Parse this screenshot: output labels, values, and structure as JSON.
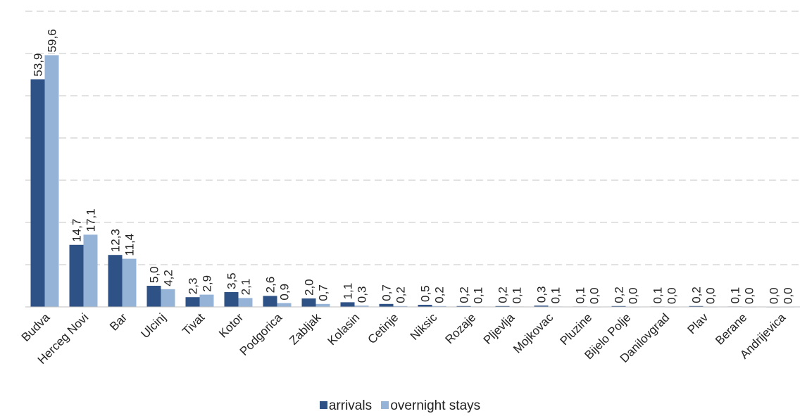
{
  "chart_data": {
    "type": "bar",
    "categories": [
      "Budva",
      "Herceg Novi",
      "Bar",
      "Ulcinj",
      "Tivat",
      "Kotor",
      "Podgorica",
      "Zabljak",
      "Kolasin",
      "Cetinje",
      "Niksic",
      "Rozaje",
      "Pljevlja",
      "Mojkovac",
      "Pluzine",
      "Bijelo Polje",
      "Danilovgrad",
      "Plav",
      "Berane",
      "Andrijevica"
    ],
    "series": [
      {
        "name": "arrivals",
        "color": "#2f5286",
        "values": [
          53.9,
          14.7,
          12.3,
          5.0,
          2.3,
          3.5,
          2.6,
          2.0,
          1.1,
          0.7,
          0.5,
          0.2,
          0.2,
          0.3,
          0.1,
          0.2,
          0.1,
          0.2,
          0.1,
          0.0
        ],
        "labels": [
          "53,9",
          "14,7",
          "12,3",
          "5,0",
          "2,3",
          "3,5",
          "2,6",
          "2,0",
          "1,1",
          "0,7",
          "0,5",
          "0,2",
          "0,2",
          "0,3",
          "0,1",
          "0,2",
          "0,1",
          "0,2",
          "0,1",
          "0,0"
        ]
      },
      {
        "name": "overnight stays",
        "color": "#95b3d7",
        "values": [
          59.6,
          17.1,
          11.4,
          4.2,
          2.9,
          2.1,
          0.9,
          0.7,
          0.3,
          0.2,
          0.2,
          0.1,
          0.1,
          0.1,
          0.0,
          0.0,
          0.0,
          0.0,
          0.0,
          0.0
        ],
        "labels": [
          "59,6",
          "17,1",
          "11,4",
          "4,2",
          "2,9",
          "2,1",
          "0,9",
          "0,7",
          "0,3",
          "0,2",
          "0,2",
          "0,1",
          "0,1",
          "0,1",
          "0,0",
          "0,0",
          "0,0",
          "0,0",
          "0,0",
          "0,0"
        ]
      }
    ],
    "ylim": [
      0,
      70
    ],
    "grid": true,
    "legend": "bottom"
  }
}
